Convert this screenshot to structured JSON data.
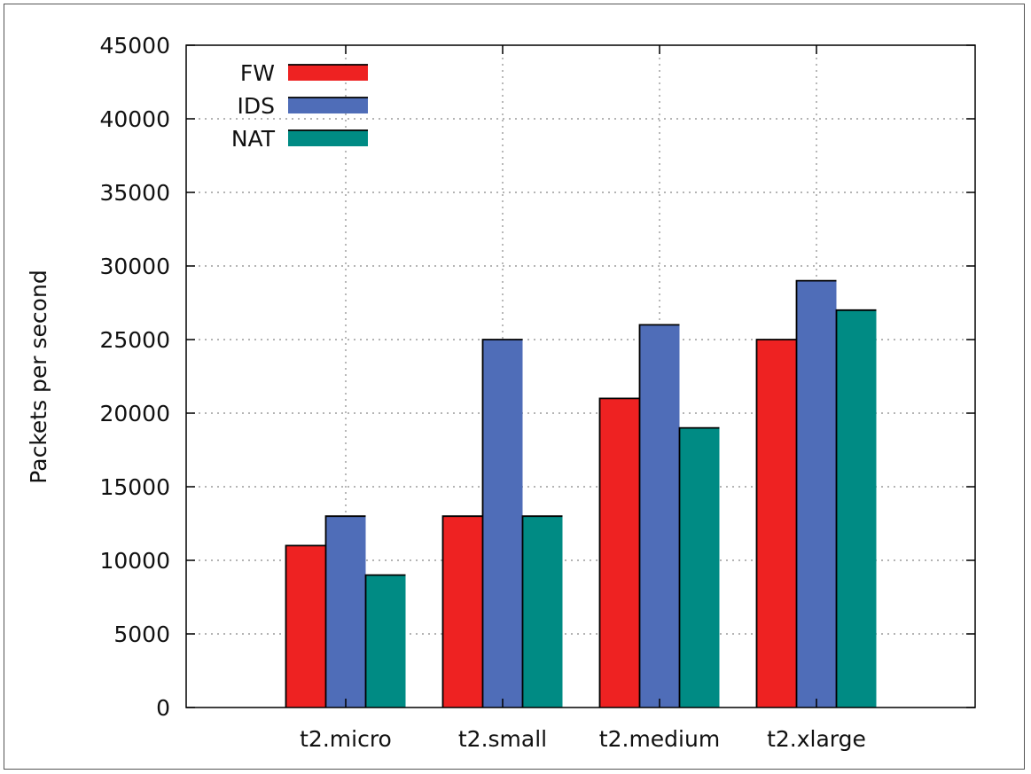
{
  "chart_data": {
    "type": "bar",
    "title": "",
    "xlabel": "",
    "ylabel": "Packets per second",
    "categories": [
      "t2.micro",
      "t2.small",
      "t2.medium",
      "t2.xlarge"
    ],
    "series": [
      {
        "name": "FW",
        "color": "#ee2222",
        "values": [
          11000,
          13000,
          21000,
          25000
        ]
      },
      {
        "name": "IDS",
        "color": "#4f6db8",
        "values": [
          13000,
          25000,
          26000,
          29000
        ]
      },
      {
        "name": "NAT",
        "color": "#008b84",
        "values": [
          9000,
          13000,
          19000,
          27000
        ]
      }
    ],
    "ylim": [
      0,
      45000
    ],
    "yticks": [
      "0",
      "5000",
      "10000",
      "15000",
      "20000",
      "25000",
      "30000",
      "35000",
      "40000",
      "45000"
    ],
    "grid": true,
    "legend_position": "top-left"
  }
}
